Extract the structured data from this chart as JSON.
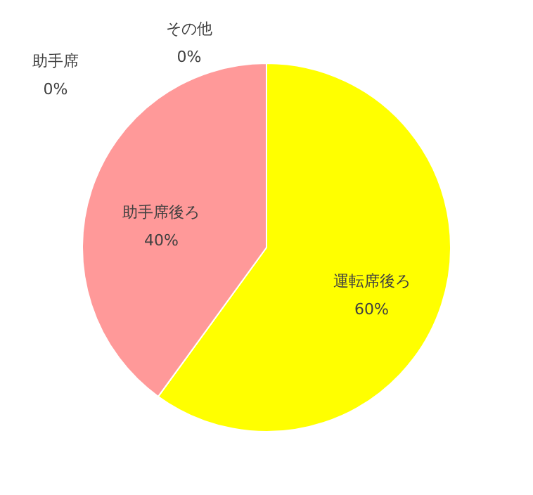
{
  "chart_data": {
    "type": "pie",
    "categories": [
      "運転席後ろ",
      "助手席後ろ",
      "助手席",
      "その他"
    ],
    "values": [
      60,
      40,
      0,
      0
    ],
    "colors": [
      "#ffff00",
      "#ff9999",
      "#ffff00",
      "#ff9999"
    ],
    "value_labels": [
      "60%",
      "40%",
      "0%",
      "0%"
    ]
  }
}
